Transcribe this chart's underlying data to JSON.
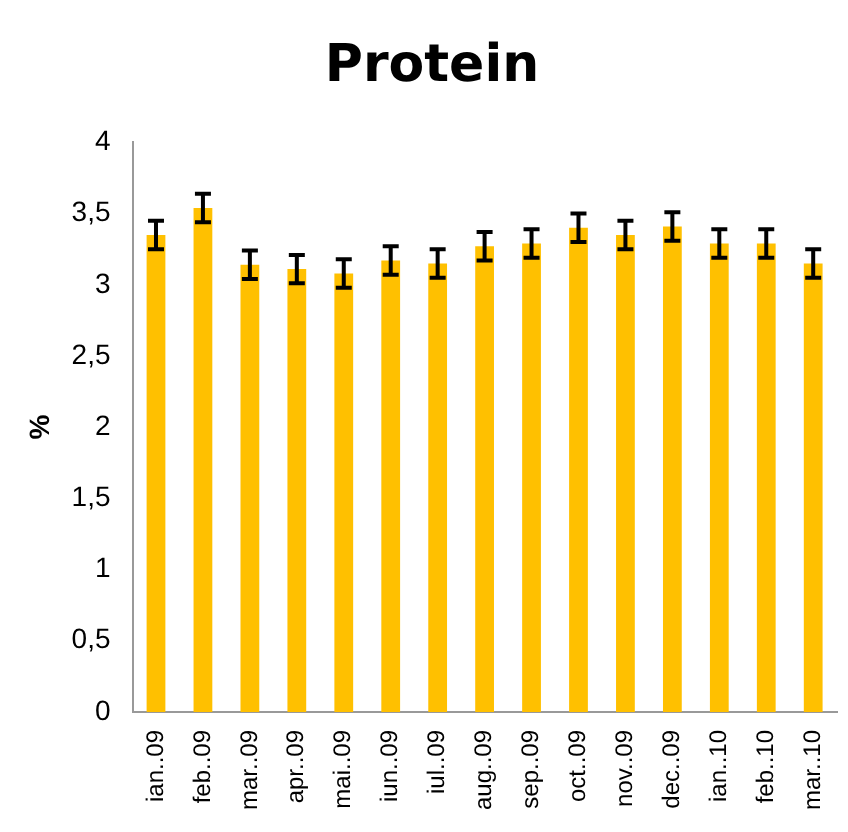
{
  "chart_data": {
    "type": "bar",
    "title": "Protein",
    "ylabel": "%",
    "categories": [
      "ian..09",
      "feb..09",
      "mar..09",
      "apr..09",
      "mai..09",
      "iun..09",
      "iul..09",
      "aug..09",
      "sep..09",
      "oct..09",
      "nov..09",
      "dec..09",
      "ian..10",
      "feb..10",
      "mar..10"
    ],
    "values": [
      3.35,
      3.54,
      3.14,
      3.11,
      3.08,
      3.17,
      3.15,
      3.27,
      3.29,
      3.4,
      3.35,
      3.41,
      3.29,
      3.29,
      3.15
    ],
    "errors": [
      0.1,
      0.1,
      0.1,
      0.1,
      0.1,
      0.1,
      0.1,
      0.1,
      0.1,
      0.1,
      0.1,
      0.1,
      0.1,
      0.1,
      0.1
    ],
    "color": "#ffc000",
    "ylim": [
      0,
      4
    ],
    "yticks": [
      {
        "value": 0,
        "label": "0"
      },
      {
        "value": 0.5,
        "label": "0,5"
      },
      {
        "value": 1,
        "label": "1"
      },
      {
        "value": 1.5,
        "label": "1,5"
      },
      {
        "value": 2,
        "label": "2"
      },
      {
        "value": 2.5,
        "label": "2,5"
      },
      {
        "value": 3,
        "label": "3"
      },
      {
        "value": 3.5,
        "label": "3,5"
      },
      {
        "value": 4,
        "label": "4"
      }
    ],
    "grid": false,
    "legend": false
  }
}
